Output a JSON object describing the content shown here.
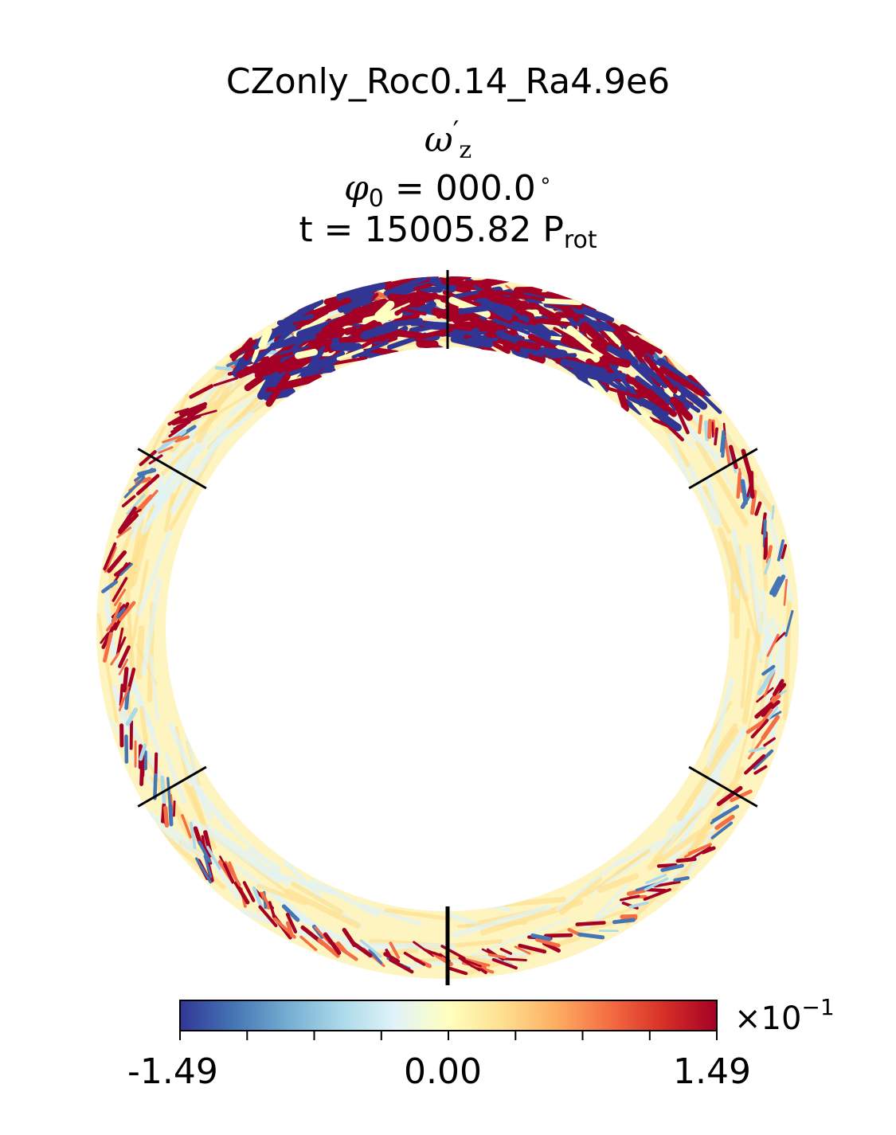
{
  "title": {
    "run_name": "CZonly_Roc0.14_Ra4.9e6",
    "quantity_symbol": "ω",
    "quantity_sub": "z",
    "quantity_prime": "′",
    "phi_symbol": "φ",
    "phi_sub": "0",
    "phi_rest": "= 000.0",
    "degree": "∘",
    "time_main": "t = 15005.82 P",
    "time_sub": "rot"
  },
  "colorbar": {
    "min_label": "-1.49",
    "mid_label": "0.00",
    "max_label": "1.49",
    "multiplier": "×10",
    "exponent": "−1",
    "min": -1.49,
    "max": 1.49,
    "colormap": [
      "#313695",
      "#4575b4",
      "#74add1",
      "#abd9e9",
      "#e0f3f8",
      "#ffffbf",
      "#fee090",
      "#fdae61",
      "#f46d43",
      "#d73027",
      "#a50026"
    ]
  },
  "diagram": {
    "projection": "equatorial-slice",
    "angular_markers_deg": [
      0,
      60,
      120,
      180,
      240,
      300
    ],
    "background_color": "#fdf4c0"
  }
}
